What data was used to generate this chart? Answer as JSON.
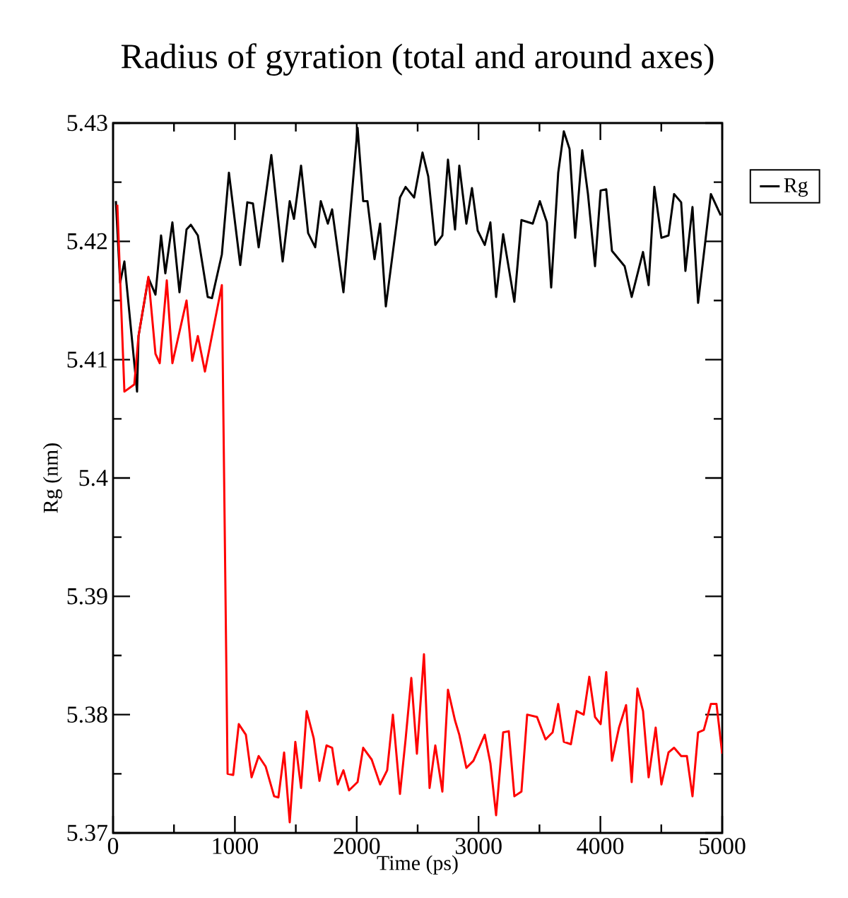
{
  "chart_data": {
    "type": "line",
    "title": "Radius of gyration (total and around axes)",
    "xlabel": "Time (ps)",
    "ylabel": "Rg (nm)",
    "xlim": [
      0,
      5000
    ],
    "ylim": [
      5.37,
      5.43
    ],
    "xticks": [
      0,
      1000,
      2000,
      3000,
      4000,
      5000
    ],
    "yticks": [
      5.37,
      5.38,
      5.39,
      5.4,
      5.41,
      5.42,
      5.43
    ],
    "legend": "top right",
    "series": [
      {
        "name": "Rg",
        "color": "#000000",
        "x": [
          23,
          58,
          93,
          197,
          209,
          290,
          348,
          394,
          429,
          487,
          545,
          603,
          638,
          696,
          777,
          812,
          893,
          951,
          1044,
          1102,
          1148,
          1195,
          1299,
          1392,
          1450,
          1485,
          1543,
          1601,
          1659,
          1705,
          1763,
          1798,
          1891,
          2007,
          2053,
          2088,
          2146,
          2192,
          2239,
          2355,
          2401,
          2471,
          2540,
          2587,
          2645,
          2703,
          2749,
          2807,
          2842,
          2900,
          2946,
          2993,
          3051,
          3097,
          3144,
          3202,
          3294,
          3352,
          3445,
          3503,
          3561,
          3596,
          3654,
          3700,
          3747,
          3793,
          3851,
          3898,
          3956,
          4002,
          4048,
          4095,
          4199,
          4257,
          4350,
          4396,
          4443,
          4501,
          4559,
          4605,
          4663,
          4698,
          4756,
          4802,
          4907,
          4988
        ],
        "values": [
          5.4234,
          5.4165,
          5.4183,
          5.4073,
          5.412,
          5.4169,
          5.4155,
          5.4205,
          5.4173,
          5.4216,
          5.4157,
          5.421,
          5.4214,
          5.4205,
          5.4153,
          5.4152,
          5.4189,
          5.4258,
          5.418,
          5.4233,
          5.4232,
          5.4195,
          5.4273,
          5.4183,
          5.4234,
          5.4219,
          5.4264,
          5.4207,
          5.4195,
          5.4234,
          5.4215,
          5.4227,
          5.4157,
          5.4296,
          5.4234,
          5.4234,
          5.4185,
          5.4215,
          5.4145,
          5.4237,
          5.4246,
          5.4237,
          5.4275,
          5.4255,
          5.4197,
          5.4205,
          5.4269,
          5.421,
          5.4264,
          5.4215,
          5.4245,
          5.4209,
          5.4197,
          5.4216,
          5.4153,
          5.4206,
          5.4149,
          5.4218,
          5.4215,
          5.4234,
          5.4216,
          5.4161,
          5.4258,
          5.4293,
          5.4278,
          5.4203,
          5.4277,
          5.424,
          5.4179,
          5.4243,
          5.4244,
          5.4192,
          5.4179,
          5.4153,
          5.4191,
          5.4163,
          5.4246,
          5.4203,
          5.4205,
          5.424,
          5.4233,
          5.4175,
          5.4229,
          5.4148,
          5.424,
          5.4222
        ]
      },
      {
        "color": "#ff0000",
        "x": [
          35,
          93,
          174,
          209,
          290,
          348,
          383,
          441,
          487,
          603,
          650,
          696,
          754,
          893,
          940,
          986,
          1032,
          1090,
          1137,
          1195,
          1253,
          1322,
          1357,
          1404,
          1450,
          1496,
          1543,
          1589,
          1647,
          1694,
          1752,
          1798,
          1844,
          1891,
          1937,
          2007,
          2053,
          2123,
          2192,
          2250,
          2297,
          2355,
          2401,
          2448,
          2494,
          2552,
          2598,
          2645,
          2703,
          2749,
          2807,
          2842,
          2900,
          2958,
          3051,
          3097,
          3144,
          3202,
          3248,
          3294,
          3352,
          3399,
          3480,
          3550,
          3608,
          3654,
          3700,
          3758,
          3805,
          3863,
          3909,
          3956,
          4002,
          4048,
          4095,
          4153,
          4211,
          4257,
          4304,
          4350,
          4396,
          4454,
          4501,
          4559,
          4605,
          4663,
          4710,
          4756,
          4802,
          4849,
          4907,
          4953,
          5000
        ],
        "values": [
          5.4231,
          5.4073,
          5.4079,
          5.412,
          5.417,
          5.4105,
          5.4097,
          5.4167,
          5.4097,
          5.415,
          5.4099,
          5.412,
          5.409,
          5.4163,
          5.375,
          5.3749,
          5.3792,
          5.3783,
          5.3747,
          5.3765,
          5.3756,
          5.3731,
          5.373,
          5.3768,
          5.3709,
          5.3777,
          5.3738,
          5.3803,
          5.378,
          5.3744,
          5.3774,
          5.3772,
          5.3741,
          5.3753,
          5.3736,
          5.3743,
          5.3772,
          5.3762,
          5.3741,
          5.3753,
          5.38,
          5.3733,
          5.3779,
          5.3831,
          5.3767,
          5.3851,
          5.3738,
          5.3774,
          5.3735,
          5.3821,
          5.3795,
          5.3783,
          5.3755,
          5.3761,
          5.3783,
          5.3759,
          5.3715,
          5.3785,
          5.3786,
          5.3731,
          5.3735,
          5.38,
          5.3798,
          5.3779,
          5.3785,
          5.3809,
          5.3777,
          5.3775,
          5.3803,
          5.38,
          5.3832,
          5.3798,
          5.3792,
          5.3836,
          5.3761,
          5.3789,
          5.3808,
          5.3743,
          5.3822,
          5.3803,
          5.3747,
          5.3789,
          5.3741,
          5.3768,
          5.3772,
          5.3765,
          5.3765,
          5.3731,
          5.3785,
          5.3787,
          5.3809,
          5.3809,
          5.3767
        ]
      }
    ]
  }
}
